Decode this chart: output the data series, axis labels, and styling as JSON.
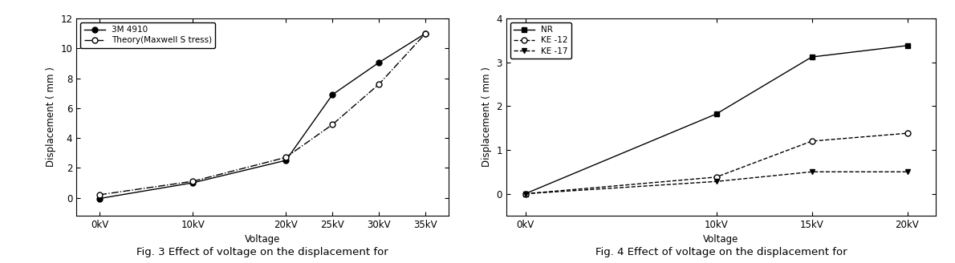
{
  "fig1": {
    "series": [
      {
        "label": "3M 4910",
        "x": [
          0,
          10,
          20,
          25,
          30,
          35
        ],
        "y": [
          -0.05,
          1.0,
          2.5,
          6.9,
          9.05,
          11.0
        ],
        "color": "black",
        "linestyle": "-",
        "marker": "o",
        "markerfacecolor": "black",
        "markersize": 5
      },
      {
        "label": "Theory(Maxwell S tress)",
        "x": [
          0,
          10,
          20,
          25,
          30,
          35
        ],
        "y": [
          0.2,
          1.1,
          2.7,
          4.9,
          7.6,
          11.0
        ],
        "color": "black",
        "linestyle": "-.",
        "marker": "o",
        "markerfacecolor": "white",
        "markersize": 5
      }
    ],
    "xlabel": "Voltage",
    "ylabel": "Displacement ( mm )",
    "xtick_labels": [
      "0kV",
      "10kV",
      "20kV",
      "25kV",
      "30kV",
      "35kV"
    ],
    "xtick_vals": [
      0,
      10,
      20,
      25,
      30,
      35
    ],
    "ylim": [
      -1.2,
      12
    ],
    "yticks": [
      0,
      2,
      4,
      6,
      8,
      10,
      12
    ],
    "xlim": [
      -2.5,
      37.5
    ],
    "caption": "Fig. 3 Effect of voltage on the displacement for"
  },
  "fig2": {
    "series": [
      {
        "label": "NR",
        "x": [
          0,
          10,
          15,
          20
        ],
        "y": [
          0.0,
          1.82,
          3.12,
          3.38
        ],
        "color": "black",
        "linestyle": "-",
        "marker": "s",
        "markerfacecolor": "black",
        "markersize": 5
      },
      {
        "label": "KE -12",
        "x": [
          0,
          10,
          15,
          20
        ],
        "y": [
          0.0,
          0.38,
          1.2,
          1.38
        ],
        "color": "black",
        "linestyle": "--",
        "marker": "o",
        "markerfacecolor": "white",
        "markersize": 5
      },
      {
        "label": "KE -17",
        "x": [
          0,
          10,
          15,
          20
        ],
        "y": [
          0.0,
          0.28,
          0.5,
          0.5
        ],
        "color": "black",
        "linestyle": "--",
        "marker": "v",
        "markerfacecolor": "black",
        "markersize": 5
      }
    ],
    "xlabel": "Voltage",
    "ylabel": "Displacement ( mm )",
    "xtick_labels": [
      "0kV",
      "10kV",
      "15kV",
      "20kV"
    ],
    "xtick_vals": [
      0,
      10,
      15,
      20
    ],
    "ylim": [
      -0.5,
      4
    ],
    "yticks": [
      0,
      1,
      2,
      3,
      4
    ],
    "xlim": [
      -1.0,
      21.5
    ],
    "caption": "Fig. 4 Effect of voltage on the displacement for"
  },
  "background_color": "#ffffff",
  "font_size": 8.5,
  "caption_fontsize": 9.5
}
